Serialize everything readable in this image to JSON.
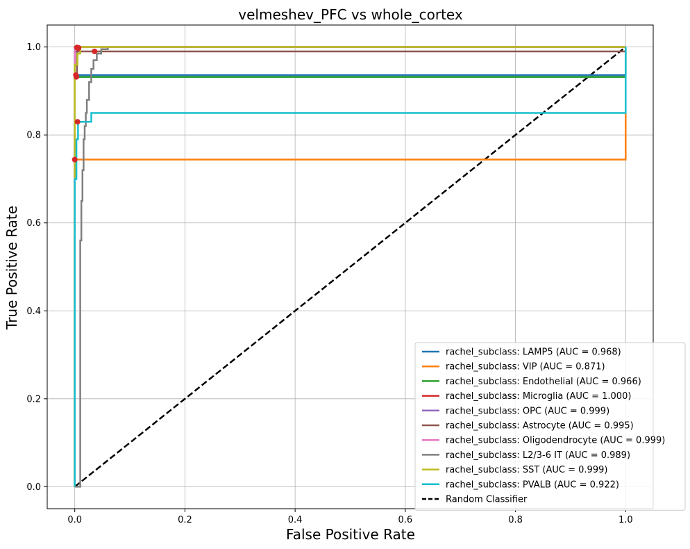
{
  "chart_data": {
    "type": "line",
    "title": "velmeshev_PFC vs whole_cortex",
    "xlabel": "False Positive Rate",
    "ylabel": "True Positive Rate",
    "xlim": [
      -0.05,
      1.05
    ],
    "ylim": [
      -0.05,
      1.05
    ],
    "xticks": [
      "0.0",
      "0.2",
      "0.4",
      "0.6",
      "0.8",
      "1.0"
    ],
    "yticks": [
      "0.0",
      "0.2",
      "0.4",
      "0.6",
      "0.8",
      "1.0"
    ],
    "grid": true,
    "legend_position": "lower-right",
    "series": [
      {
        "name": "rachel_subclass: LAMP5 (AUC = 0.968)",
        "color": "#1f77b4",
        "points": [
          [
            0,
            0
          ],
          [
            0,
            0.936
          ],
          [
            0.005,
            0.936
          ],
          [
            1,
            0.936
          ],
          [
            1,
            1
          ]
        ],
        "marker": [
          0.002,
          0.936
        ]
      },
      {
        "name": "rachel_subclass: VIP (AUC = 0.871)",
        "color": "#ff7f0e",
        "points": [
          [
            0,
            0
          ],
          [
            0,
            0.744
          ],
          [
            1,
            0.744
          ],
          [
            1,
            0.85
          ]
        ],
        "marker": [
          0.0,
          0.744
        ]
      },
      {
        "name": "rachel_subclass: Endothelial (AUC = 0.966)",
        "color": "#2ca02c",
        "points": [
          [
            0,
            0
          ],
          [
            0,
            0.932
          ],
          [
            0.004,
            0.932
          ],
          [
            1,
            0.932
          ],
          [
            1,
            1
          ]
        ],
        "marker": [
          0.003,
          0.932
        ]
      },
      {
        "name": "rachel_subclass: Microglia (AUC = 1.000)",
        "color": "#d62728",
        "points": [
          [
            0,
            0
          ],
          [
            0,
            1
          ],
          [
            1,
            1
          ]
        ],
        "marker": [
          0.004,
          0.999
        ]
      },
      {
        "name": "rachel_subclass: OPC (AUC = 0.999)",
        "color": "#9467bd",
        "points": [
          [
            0,
            0
          ],
          [
            0,
            0.99
          ],
          [
            0.006,
            0.99
          ],
          [
            0.006,
            1
          ],
          [
            1,
            1
          ]
        ],
        "marker": [
          0.006,
          0.997
        ]
      },
      {
        "name": "rachel_subclass: Astrocyte (AUC = 0.995)",
        "color": "#8c564b",
        "points": [
          [
            0,
            0
          ],
          [
            0,
            0.93
          ],
          [
            0.004,
            0.93
          ],
          [
            0.004,
            0.99
          ],
          [
            0.036,
            0.99
          ],
          [
            1,
            0.99
          ],
          [
            1,
            1
          ]
        ],
        "marker": [
          0.036,
          0.99
        ]
      },
      {
        "name": "rachel_subclass: Oligodendrocyte (AUC = 0.999)",
        "color": "#e377c2",
        "points": [
          [
            0,
            0
          ],
          [
            0,
            0.995
          ],
          [
            0.007,
            0.995
          ],
          [
            0.007,
            1
          ],
          [
            1,
            1
          ]
        ],
        "marker": [
          0.007,
          0.998
        ]
      },
      {
        "name": "rachel_subclass: L2/3-6 IT (AUC = 0.989)",
        "color": "#7f7f7f",
        "points": [
          [
            0,
            0
          ],
          [
            0.01,
            0
          ],
          [
            0.01,
            0.56
          ],
          [
            0.012,
            0.56
          ],
          [
            0.012,
            0.65
          ],
          [
            0.014,
            0.65
          ],
          [
            0.014,
            0.72
          ],
          [
            0.016,
            0.72
          ],
          [
            0.016,
            0.79
          ],
          [
            0.018,
            0.79
          ],
          [
            0.018,
            0.82
          ],
          [
            0.02,
            0.82
          ],
          [
            0.02,
            0.85
          ],
          [
            0.022,
            0.85
          ],
          [
            0.022,
            0.88
          ],
          [
            0.026,
            0.88
          ],
          [
            0.026,
            0.92
          ],
          [
            0.03,
            0.92
          ],
          [
            0.03,
            0.95
          ],
          [
            0.034,
            0.95
          ],
          [
            0.034,
            0.97
          ],
          [
            0.04,
            0.97
          ],
          [
            0.04,
            0.985
          ],
          [
            0.048,
            0.985
          ],
          [
            0.048,
            0.995
          ],
          [
            0.06,
            0.995
          ],
          [
            0.06,
            1
          ],
          [
            1,
            1
          ]
        ],
        "marker": null
      },
      {
        "name": "rachel_subclass: SST (AUC = 0.999)",
        "color": "#bcbd22",
        "points": [
          [
            0,
            0
          ],
          [
            0,
            0.96
          ],
          [
            0.005,
            0.96
          ],
          [
            0.005,
            0.985
          ],
          [
            0.01,
            0.985
          ],
          [
            0.01,
            1
          ],
          [
            1,
            1
          ]
        ],
        "marker": null
      },
      {
        "name": "rachel_subclass: PVALB (AUC = 0.922)",
        "color": "#17becf",
        "points": [
          [
            0,
            0
          ],
          [
            0,
            0.7
          ],
          [
            0.003,
            0.7
          ],
          [
            0.003,
            0.79
          ],
          [
            0.006,
            0.79
          ],
          [
            0.006,
            0.83
          ],
          [
            0.03,
            0.83
          ],
          [
            0.03,
            0.85
          ],
          [
            1,
            0.85
          ],
          [
            1,
            1
          ]
        ],
        "marker": [
          0.005,
          0.83
        ]
      }
    ],
    "reference_line": {
      "name": "Random Classifier",
      "color": "#000000",
      "points": [
        [
          0,
          0
        ],
        [
          1,
          1
        ]
      ]
    }
  }
}
